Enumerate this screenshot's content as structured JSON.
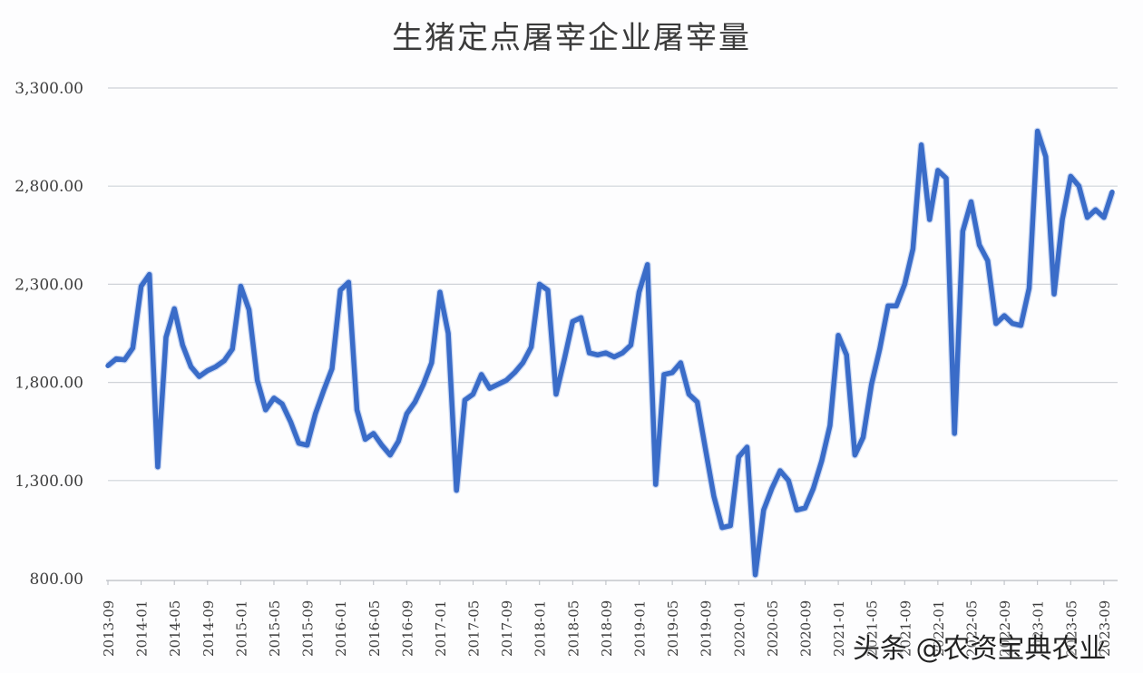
{
  "title": "生猪定点屠宰企业屠宰量",
  "watermark": "头条 @农资宝典农业",
  "chart_data": {
    "type": "line",
    "title": "生猪定点屠宰企业屠宰量",
    "xlabel": "",
    "ylabel": "",
    "ylim": [
      800,
      3300
    ],
    "yticks": [
      "3,300.00",
      "2,800.00",
      "2,300.00",
      "1,800.00",
      "1,300.00",
      "800.00"
    ],
    "ytick_values": [
      3300,
      2800,
      2300,
      1800,
      1300,
      800
    ],
    "xtick_labels": [
      "2013-09",
      "2014-01",
      "2014-05",
      "2014-09",
      "2015-01",
      "2015-05",
      "2015-09",
      "2016-01",
      "2016-05",
      "2016-09",
      "2017-01",
      "2017-05",
      "2017-09",
      "2018-01",
      "2018-05",
      "2018-09",
      "2019-01",
      "2019-05",
      "2019-09",
      "2020-01",
      "2020-05",
      "2020-09",
      "2021-01",
      "2021-05",
      "2021-09",
      "2022-01",
      "2022-05",
      "2022-09",
      "2023-01",
      "2023-05",
      "2023-09"
    ],
    "grid": true,
    "legend": "none",
    "line_color": "#3a6cc8",
    "x_start": "2013-09",
    "x_end": "2023-09",
    "series": [
      {
        "name": "生猪定点屠宰企业屠宰量",
        "values": [
          1885,
          1920,
          1915,
          1975,
          2290,
          2350,
          1370,
          2030,
          2175,
          1990,
          1880,
          1830,
          1860,
          1880,
          1910,
          1970,
          2290,
          2170,
          1810,
          1660,
          1720,
          1690,
          1600,
          1490,
          1480,
          1640,
          1760,
          1870,
          2270,
          2310,
          1660,
          1510,
          1540,
          1480,
          1430,
          1500,
          1640,
          1700,
          1790,
          1900,
          2260,
          2050,
          1250,
          1710,
          1740,
          1840,
          1770,
          1790,
          1810,
          1850,
          1900,
          1980,
          2300,
          2270,
          1740,
          1920,
          2110,
          2130,
          1950,
          1940,
          1950,
          1930,
          1950,
          1990,
          2260,
          2400,
          1280,
          1840,
          1850,
          1900,
          1740,
          1700,
          1460,
          1220,
          1060,
          1070,
          1420,
          1470,
          820,
          1150,
          1260,
          1350,
          1300,
          1150,
          1160,
          1260,
          1400,
          1580,
          2040,
          1940,
          1430,
          1520,
          1790,
          1970,
          2190,
          2190,
          2300,
          2480,
          3010,
          2630,
          2880,
          2840,
          1540,
          2570,
          2720,
          2500,
          2420,
          2100,
          2140,
          2100,
          2090,
          2280,
          3080,
          2950,
          2250,
          2630,
          2850,
          2800,
          2640,
          2680,
          2640,
          2770
        ]
      }
    ]
  }
}
